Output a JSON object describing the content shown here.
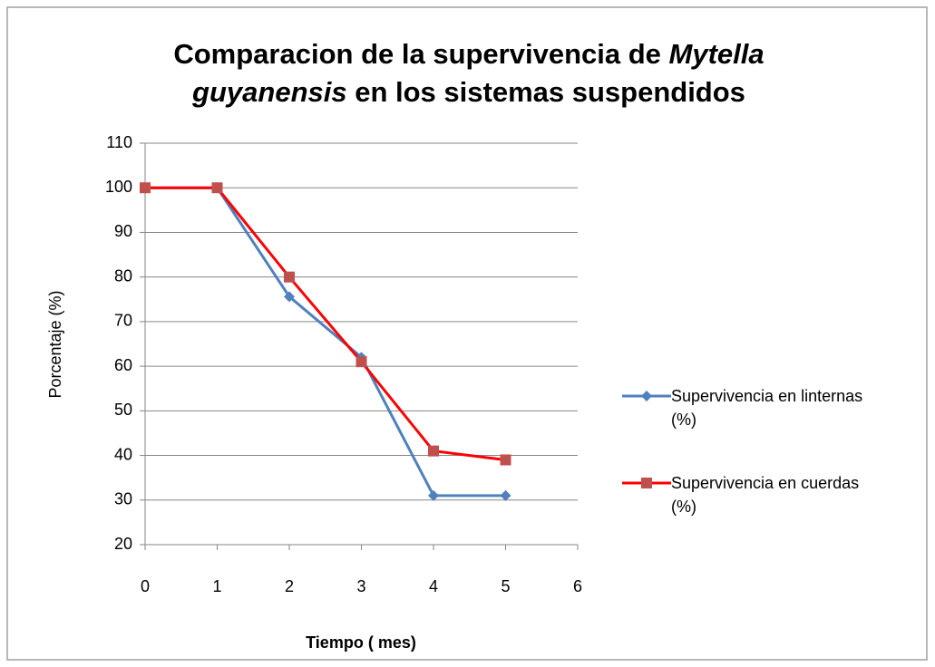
{
  "chart_data": {
    "type": "line",
    "title": [
      [
        {
          "text": "Comparacion de la supervivencia de ",
          "italic": false
        },
        {
          "text": "Mytella",
          "italic": true
        }
      ],
      [
        {
          "text": "guyanensis",
          "italic": true
        },
        {
          "text": " en los sistemas suspendidos",
          "italic": false
        }
      ]
    ],
    "x_label": "Tiempo ( mes)",
    "y_label": "Porcentaje (%)",
    "x": [
      0,
      1,
      2,
      3,
      4,
      5
    ],
    "series": [
      {
        "name": "Supervivencia en linternas (%)",
        "color": "#4f81bd",
        "marker_color": "#4f81bd",
        "marker": "diamond",
        "values": [
          100,
          100,
          75.6,
          62,
          31,
          31
        ]
      },
      {
        "name": "Supervivencia en cuerdas (%)",
        "color": "#ff0000",
        "marker_color": "#c0504d",
        "marker": "square",
        "values": [
          100,
          100,
          80,
          61,
          41,
          39
        ]
      }
    ],
    "xlim": [
      0,
      6
    ],
    "xticks": [
      0,
      1,
      2,
      3,
      4,
      5,
      6
    ],
    "ylim": [
      20,
      110
    ],
    "yticks": [
      20,
      30,
      40,
      50,
      60,
      70,
      80,
      90,
      100,
      110
    ],
    "grid": true,
    "legend": "right"
  }
}
